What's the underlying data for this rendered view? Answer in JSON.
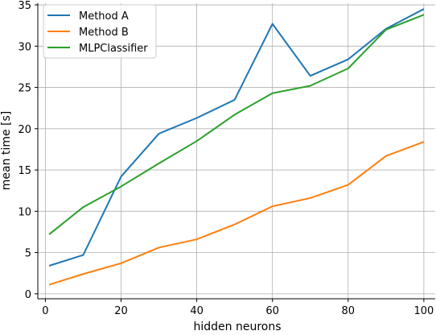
{
  "chart_data": {
    "type": "line",
    "title": "",
    "xlabel": "hidden neurons",
    "ylabel": "mean time [s]",
    "xlim": [
      -2,
      103
    ],
    "ylim": [
      -0.6,
      35.2
    ],
    "xticks": [
      0,
      20,
      40,
      60,
      80,
      100
    ],
    "yticks": [
      0,
      5,
      10,
      15,
      20,
      25,
      30,
      35
    ],
    "grid": true,
    "legend_position": "top-left",
    "x": [
      1,
      10,
      20,
      30,
      40,
      50,
      60,
      70,
      80,
      90,
      100
    ],
    "series": [
      {
        "name": "Method A",
        "color": "#1f77b4",
        "values": [
          3.4,
          4.7,
          14.2,
          19.4,
          21.3,
          23.5,
          32.7,
          26.4,
          28.4,
          32.1,
          34.5
        ]
      },
      {
        "name": "Method B",
        "color": "#ff7f0e",
        "values": [
          1.1,
          2.4,
          3.7,
          5.6,
          6.6,
          8.4,
          10.6,
          11.6,
          13.2,
          16.7,
          18.4
        ]
      },
      {
        "name": "MLPClassifier",
        "color": "#2ca02c",
        "values": [
          7.2,
          10.5,
          13.0,
          15.8,
          18.5,
          21.7,
          24.3,
          25.2,
          27.3,
          32.0,
          33.8
        ]
      }
    ]
  }
}
